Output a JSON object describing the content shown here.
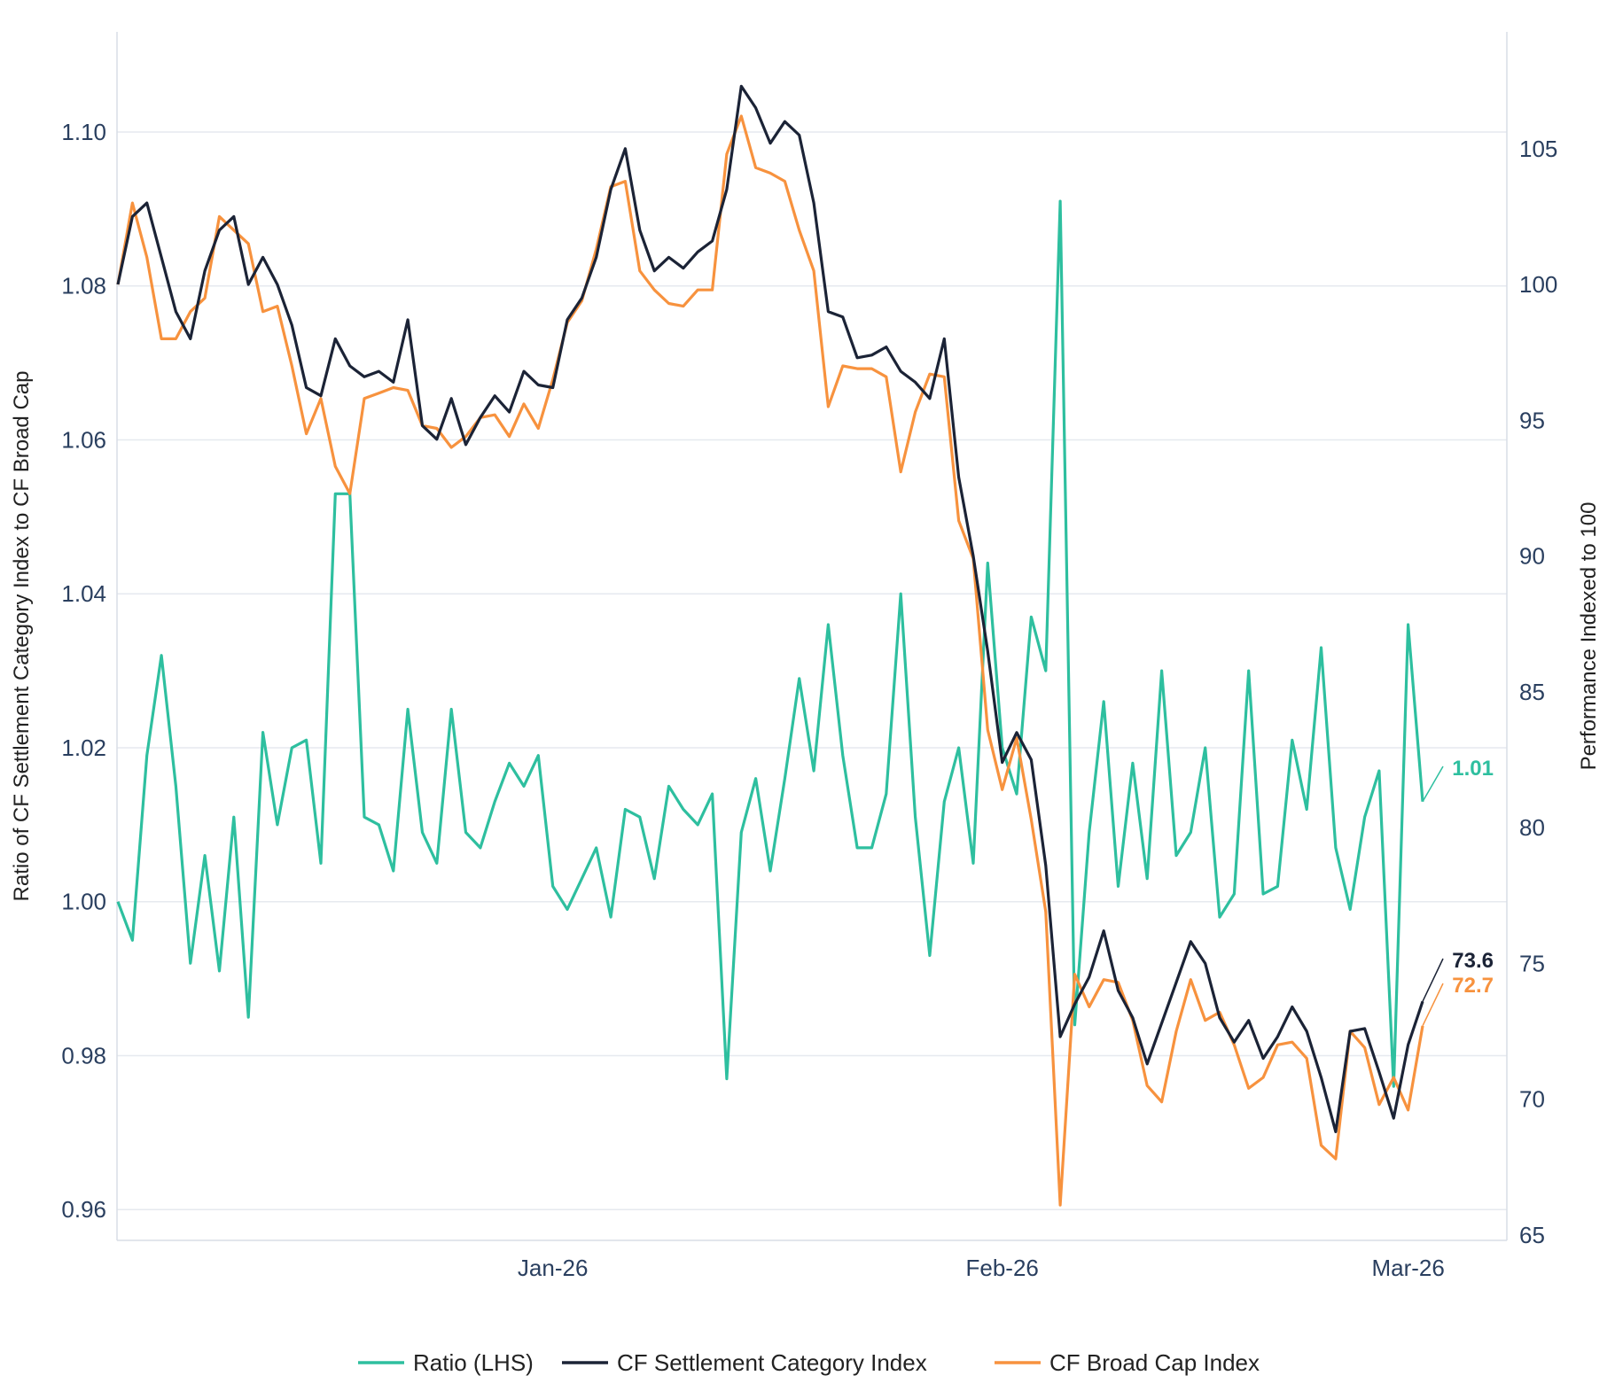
{
  "chart_data": {
    "type": "line",
    "x_labels": [
      "Jan-26",
      "Feb-26",
      "Mar-26"
    ],
    "x_label_index": [
      30,
      61,
      89
    ],
    "yaxis_left": {
      "title": "Ratio of CF Settlement Category Index to CF Broad Cap",
      "range": [
        0.956,
        1.113
      ],
      "ticks": [
        "0.96",
        "0.98",
        "1.00",
        "1.02",
        "1.04",
        "1.06",
        "1.08",
        "1.10"
      ],
      "tick_values": [
        0.96,
        0.98,
        1.0,
        1.02,
        1.04,
        1.06,
        1.08,
        1.1
      ]
    },
    "yaxis_right": {
      "title": "Performance Indexed to 100",
      "range": [
        64.8,
        109.3
      ],
      "ticks": [
        "65",
        "70",
        "75",
        "80",
        "85",
        "90",
        "95",
        "100",
        "105"
      ],
      "tick_values": [
        65,
        70,
        75,
        80,
        85,
        90,
        95,
        100,
        105
      ]
    },
    "series": [
      {
        "name": "Ratio (LHS)",
        "axis": "left",
        "color": "#2ebf9f",
        "end_label": "1.01",
        "values": [
          1.0,
          0.995,
          1.019,
          1.032,
          1.015,
          0.992,
          1.006,
          0.991,
          1.011,
          0.985,
          1.022,
          1.01,
          1.02,
          1.021,
          1.005,
          1.053,
          1.053,
          1.011,
          1.01,
          1.004,
          1.025,
          1.009,
          1.005,
          1.025,
          1.009,
          1.007,
          1.013,
          1.018,
          1.015,
          1.019,
          1.002,
          0.999,
          1.003,
          1.007,
          0.998,
          1.012,
          1.011,
          1.003,
          1.015,
          1.012,
          1.01,
          1.014,
          0.977,
          1.009,
          1.016,
          1.004,
          1.016,
          1.029,
          1.017,
          1.036,
          1.019,
          1.007,
          1.007,
          1.014,
          1.04,
          1.011,
          0.993,
          1.013,
          1.02,
          1.005,
          1.044,
          1.02,
          1.014,
          1.037,
          1.03,
          1.091,
          0.984,
          1.009,
          1.026,
          1.002,
          1.018,
          1.003,
          1.03,
          1.006,
          1.009,
          1.02,
          0.998,
          1.001,
          1.03,
          1.001,
          1.002,
          1.021,
          1.012,
          1.033,
          1.007,
          0.999,
          1.011,
          1.017,
          0.976,
          1.036,
          1.013
        ]
      },
      {
        "name": "CF Settlement Category Index",
        "axis": "right",
        "color": "#1b2336",
        "end_label": "73.6",
        "values": [
          100.0,
          102.5,
          103.0,
          101.0,
          99.0,
          98.0,
          100.5,
          102.0,
          102.5,
          100.0,
          101.0,
          100.0,
          98.5,
          96.2,
          95.9,
          98.0,
          97.0,
          96.6,
          96.8,
          96.4,
          98.7,
          94.8,
          94.3,
          95.8,
          94.1,
          95.1,
          95.9,
          95.3,
          96.8,
          96.3,
          96.2,
          98.7,
          99.5,
          101.0,
          103.5,
          105.0,
          102.0,
          100.5,
          101.0,
          100.6,
          101.2,
          101.6,
          103.5,
          107.3,
          106.5,
          105.2,
          106.0,
          105.5,
          103.0,
          99.0,
          98.8,
          97.3,
          97.4,
          97.7,
          96.8,
          96.4,
          95.8,
          98.0,
          92.9,
          90.0,
          86.5,
          82.4,
          83.5,
          82.5,
          78.6,
          72.3,
          73.5,
          74.5,
          76.2,
          74.0,
          73.0,
          71.3,
          72.8,
          74.3,
          75.8,
          75.0,
          73.0,
          72.1,
          72.9,
          71.5,
          72.3,
          73.4,
          72.5,
          70.8,
          68.8,
          72.5,
          72.6,
          71.0,
          69.3,
          72.0,
          73.6
        ]
      },
      {
        "name": "CF Broad Cap Index",
        "axis": "right",
        "color": "#f7923e",
        "end_label": "72.7",
        "values": [
          100.0,
          103.0,
          101.0,
          98.0,
          98.0,
          99.0,
          99.5,
          102.5,
          102.0,
          101.5,
          99.0,
          99.2,
          97.0,
          94.5,
          95.8,
          93.3,
          92.3,
          95.8,
          96.0,
          96.2,
          96.1,
          94.8,
          94.7,
          94.0,
          94.4,
          95.1,
          95.2,
          94.4,
          95.6,
          94.7,
          96.5,
          98.6,
          99.4,
          101.3,
          103.6,
          103.8,
          100.5,
          99.8,
          99.3,
          99.2,
          99.8,
          99.8,
          104.8,
          106.2,
          104.3,
          104.1,
          103.8,
          102.0,
          100.5,
          95.5,
          97.0,
          96.9,
          96.9,
          96.6,
          93.1,
          95.3,
          96.7,
          96.6,
          91.3,
          89.9,
          83.6,
          81.4,
          83.3,
          80.3,
          76.9,
          66.1,
          74.6,
          73.4,
          74.4,
          74.3,
          72.9,
          70.5,
          69.9,
          72.5,
          74.4,
          72.9,
          73.2,
          72.0,
          70.4,
          70.8,
          72.0,
          72.1,
          71.5,
          68.3,
          67.8,
          72.5,
          71.9,
          69.8,
          70.8,
          69.6,
          72.7
        ]
      }
    ],
    "legend": [
      "Ratio (LHS)",
      "CF Settlement Category Index",
      "CF Broad Cap Index"
    ],
    "legend_position": "bottom-center",
    "grid": true
  }
}
